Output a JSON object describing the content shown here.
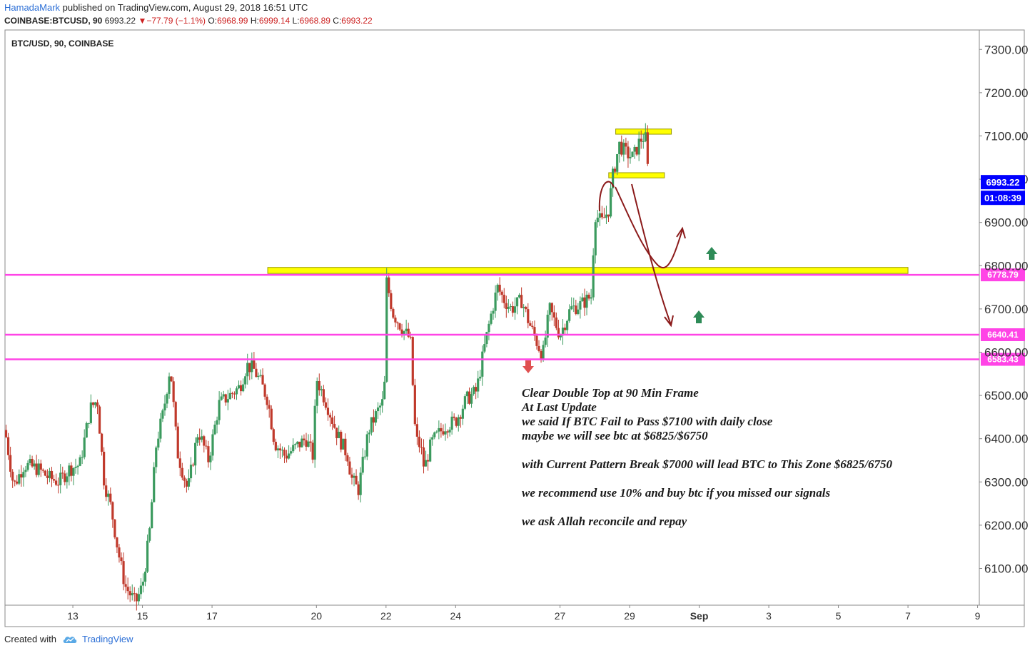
{
  "header": {
    "author": "HamadaMark",
    "published": "published on TradingView.com, August 29, 2018 16:51 UTC",
    "symbol_line": {
      "symbol": "COINBASE:BTCUSD, 90",
      "last": "6993.22",
      "change": "−77.79 (−1.1%)",
      "o_label": "O:",
      "o_value": "6968.99",
      "h_label": "H:",
      "h_value": "6999.14",
      "l_label": "L:",
      "l_value": "6968.89",
      "c_label": "C:",
      "c_value": "6993.22"
    }
  },
  "footer": {
    "created_with": "Created with",
    "brand": "TradingView"
  },
  "colors": {
    "up_candle": "#3b9a5e",
    "down_candle": "#c0392b",
    "magenta_level": "#ff44e6",
    "yellow_zone": "#ffff00",
    "arrow_dark_red": "#8b1a1a",
    "up_arrow": "#2e8b57",
    "down_arrow": "#e05050",
    "price_badge": "#0000ff"
  },
  "chart_data": {
    "type": "candlestick",
    "title": "BTC/USD, 90, COINBASE",
    "ylim": [
      6015,
      7345
    ],
    "y_ticks": [
      6100,
      6200,
      6300,
      6400,
      6500,
      6600,
      6700,
      6800,
      6900,
      7000,
      7100,
      7200,
      7300
    ],
    "y_tick_labels": [
      "6100.00",
      "6200.00",
      "6300.00",
      "6400.00",
      "6500.00",
      "6600.00",
      "6700.00",
      "6800.00",
      "6900.00",
      "7000.00",
      "7100.00",
      "7200.00",
      "7300.00"
    ],
    "x_ticks": [
      {
        "t": 13,
        "label": "13"
      },
      {
        "t": 15,
        "label": "15"
      },
      {
        "t": 17,
        "label": "17"
      },
      {
        "t": 20,
        "label": "20"
      },
      {
        "t": 22,
        "label": "22"
      },
      {
        "t": 24,
        "label": "24"
      },
      {
        "t": 27,
        "label": "27"
      },
      {
        "t": 29,
        "label": "29"
      },
      {
        "t": 31,
        "label": "Sep"
      },
      {
        "t": 33,
        "label": "3"
      },
      {
        "t": 35,
        "label": "5"
      },
      {
        "t": 37,
        "label": "7"
      },
      {
        "t": 39,
        "label": "9"
      }
    ],
    "xlim": [
      11.05,
      39.05
    ],
    "price_path": [
      [
        11.05,
        6420
      ],
      [
        11.3,
        6290
      ],
      [
        11.6,
        6340
      ],
      [
        12.0,
        6330
      ],
      [
        12.3,
        6310
      ],
      [
        12.6,
        6300
      ],
      [
        12.9,
        6330
      ],
      [
        13.2,
        6340
      ],
      [
        13.5,
        6470
      ],
      [
        13.7,
        6490
      ],
      [
        13.9,
        6300
      ],
      [
        14.1,
        6240
      ],
      [
        14.3,
        6140
      ],
      [
        14.5,
        6060
      ],
      [
        14.8,
        6020
      ],
      [
        15.0,
        6060
      ],
      [
        15.2,
        6180
      ],
      [
        15.4,
        6390
      ],
      [
        15.6,
        6460
      ],
      [
        15.8,
        6570
      ],
      [
        16.0,
        6370
      ],
      [
        16.3,
        6280
      ],
      [
        16.6,
        6420
      ],
      [
        16.9,
        6350
      ],
      [
        17.2,
        6480
      ],
      [
        17.5,
        6500
      ],
      [
        17.8,
        6520
      ],
      [
        18.0,
        6570
      ],
      [
        18.2,
        6560
      ],
      [
        18.4,
        6530
      ],
      [
        18.6,
        6490
      ],
      [
        18.8,
        6390
      ],
      [
        19.1,
        6360
      ],
      [
        19.4,
        6380
      ],
      [
        19.7,
        6400
      ],
      [
        19.9,
        6360
      ],
      [
        20.0,
        6540
      ],
      [
        20.3,
        6480
      ],
      [
        20.6,
        6410
      ],
      [
        20.9,
        6360
      ],
      [
        21.0,
        6310
      ],
      [
        21.2,
        6280
      ],
      [
        21.5,
        6420
      ],
      [
        21.8,
        6470
      ],
      [
        21.95,
        6490
      ],
      [
        22.0,
        6770
      ],
      [
        22.2,
        6690
      ],
      [
        22.5,
        6650
      ],
      [
        22.7,
        6630
      ],
      [
        22.85,
        6400
      ],
      [
        23.0,
        6380
      ],
      [
        23.1,
        6330
      ],
      [
        23.3,
        6390
      ],
      [
        23.7,
        6430
      ],
      [
        24.0,
        6440
      ],
      [
        24.3,
        6490
      ],
      [
        24.6,
        6510
      ],
      [
        24.8,
        6600
      ],
      [
        25.0,
        6680
      ],
      [
        25.2,
        6750
      ],
      [
        25.4,
        6720
      ],
      [
        25.6,
        6700
      ],
      [
        25.9,
        6720
      ],
      [
        26.1,
        6670
      ],
      [
        26.3,
        6630
      ],
      [
        26.5,
        6590
      ],
      [
        26.7,
        6700
      ],
      [
        27.0,
        6640
      ],
      [
        27.3,
        6700
      ],
      [
        27.6,
        6710
      ],
      [
        27.9,
        6730
      ],
      [
        28.0,
        6920
      ],
      [
        28.2,
        6900
      ],
      [
        28.4,
        6930
      ],
      [
        28.5,
        7000
      ],
      [
        28.7,
        7080
      ],
      [
        28.9,
        7060
      ],
      [
        29.1,
        7050
      ],
      [
        29.3,
        7090
      ],
      [
        29.45,
        7100
      ],
      [
        29.55,
        6993
      ]
    ],
    "level_lines": [
      {
        "value": 6778.79,
        "label": "6778.79",
        "color": "#ff44e6"
      },
      {
        "value": 6640.41,
        "label": "6640.41",
        "color": "#ff44e6"
      },
      {
        "value": 6583.43,
        "label": "6583.43",
        "color": "#ff44e6"
      }
    ],
    "zones": [
      {
        "t0": 18.6,
        "t1": 37.0,
        "y0": 6782,
        "y1": 6796
      },
      {
        "t0": 28.6,
        "t1": 30.2,
        "y0": 7104,
        "y1": 7116
      },
      {
        "t0": 28.4,
        "t1": 30.0,
        "y0": 7003,
        "y1": 7015
      }
    ],
    "price_badges": [
      {
        "value": 6993.22,
        "label": "6993.22"
      },
      {
        "value": 6993.22,
        "label": "01:08:39"
      }
    ]
  },
  "annotation": {
    "lines": [
      "Clear Double Top at 90 Min Frame",
      "At Last Update",
      "we said If BTC Fail to Pass $7100 with daily close",
      "maybe we will see btc at $6825/$6750",
      "",
      "with Current Pattern Break $7000 will lead BTC to This Zone $6825/6750",
      "",
      "we recommend use 10% and buy btc if you missed our signals",
      "",
      "we ask Allah reconcile and repay"
    ]
  }
}
